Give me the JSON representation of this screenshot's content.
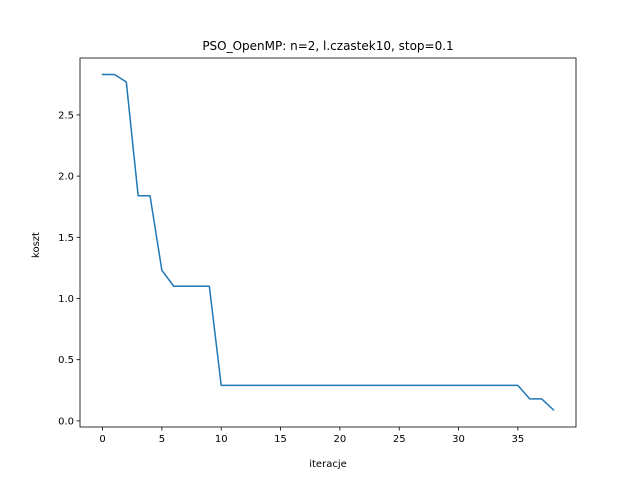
{
  "chart_data": {
    "type": "line",
    "title": "PSO_OpenMP: n=2, l.czastek10, stop=0.1",
    "xlabel": "iteracje",
    "ylabel": "koszt",
    "xlim": [
      -1.9,
      39.9
    ],
    "ylim": [
      -0.05,
      2.965
    ],
    "x_ticks": [
      0,
      5,
      10,
      15,
      20,
      25,
      30,
      35
    ],
    "x_tick_labels": [
      "0",
      "5",
      "10",
      "15",
      "20",
      "25",
      "30",
      "35"
    ],
    "y_ticks": [
      0.0,
      0.5,
      1.0,
      1.5,
      2.0,
      2.5
    ],
    "y_tick_labels": [
      "0.0",
      "0.5",
      "1.0",
      "1.5",
      "2.0",
      "2.5"
    ],
    "grid": false,
    "legend": "none",
    "series": [
      {
        "color": "#1f77b4",
        "x": [
          0,
          1,
          2,
          3,
          4,
          5,
          6,
          7,
          8,
          9,
          10,
          11,
          12,
          13,
          14,
          15,
          16,
          17,
          18,
          19,
          20,
          21,
          22,
          23,
          24,
          25,
          26,
          27,
          28,
          29,
          30,
          31,
          32,
          33,
          34,
          35,
          36,
          37,
          38
        ],
        "y": [
          2.83,
          2.83,
          2.77,
          1.84,
          1.84,
          1.23,
          1.1,
          1.1,
          1.1,
          1.1,
          0.29,
          0.29,
          0.29,
          0.29,
          0.29,
          0.29,
          0.29,
          0.29,
          0.29,
          0.29,
          0.29,
          0.29,
          0.29,
          0.29,
          0.29,
          0.29,
          0.29,
          0.29,
          0.29,
          0.29,
          0.29,
          0.29,
          0.29,
          0.29,
          0.29,
          0.29,
          0.18,
          0.18,
          0.09
        ]
      }
    ]
  }
}
